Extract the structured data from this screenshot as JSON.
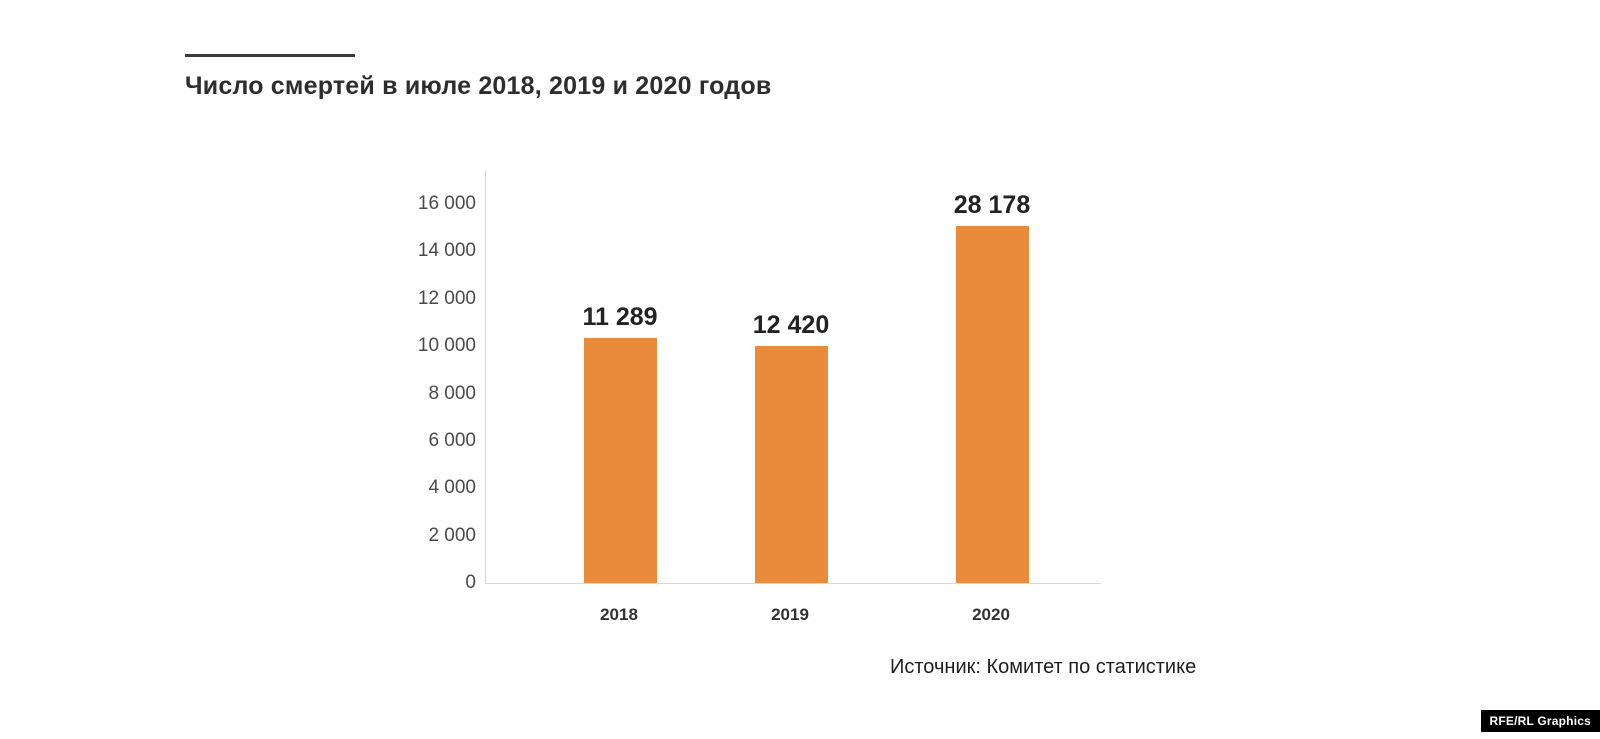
{
  "page": {
    "title": "Число смертей в июле 2018, 2019 и 2020 годов",
    "source": "Источник: Комитет по статистике",
    "credit": "RFE/RL Graphics"
  },
  "colors": {
    "bar": "#EA8B3B",
    "title_text": "#2D2D2D",
    "axis_text": "#4A4A4A",
    "value_text": "#222222",
    "rule": "#3B3B3B",
    "credit_bg": "#000000",
    "credit_text": "#FFFFFF"
  },
  "chart_data": {
    "type": "bar",
    "title": "Число смертей в июле 2018, 2019 и 2020 годов",
    "categories": [
      "2018",
      "2019",
      "2020"
    ],
    "values": [
      11289,
      12420,
      28178
    ],
    "value_labels": [
      "11 289",
      "12 420",
      "28 178"
    ],
    "rendered_bar_values": [
      10350,
      10000,
      15060
    ],
    "y_ticks": [
      0,
      2000,
      4000,
      6000,
      8000,
      10000,
      12000,
      14000,
      16000
    ],
    "y_tick_labels": [
      "0",
      "2 000",
      "4 000",
      "6 000",
      "8 000",
      "10 000",
      "12 000",
      "14 000",
      "16 000"
    ],
    "ylim": [
      0,
      16000
    ],
    "xlabel": "",
    "ylabel": "",
    "grid": false,
    "legend": "none",
    "bar_color": "#EA8B3B",
    "source": "Источник: Комитет по статистике"
  }
}
